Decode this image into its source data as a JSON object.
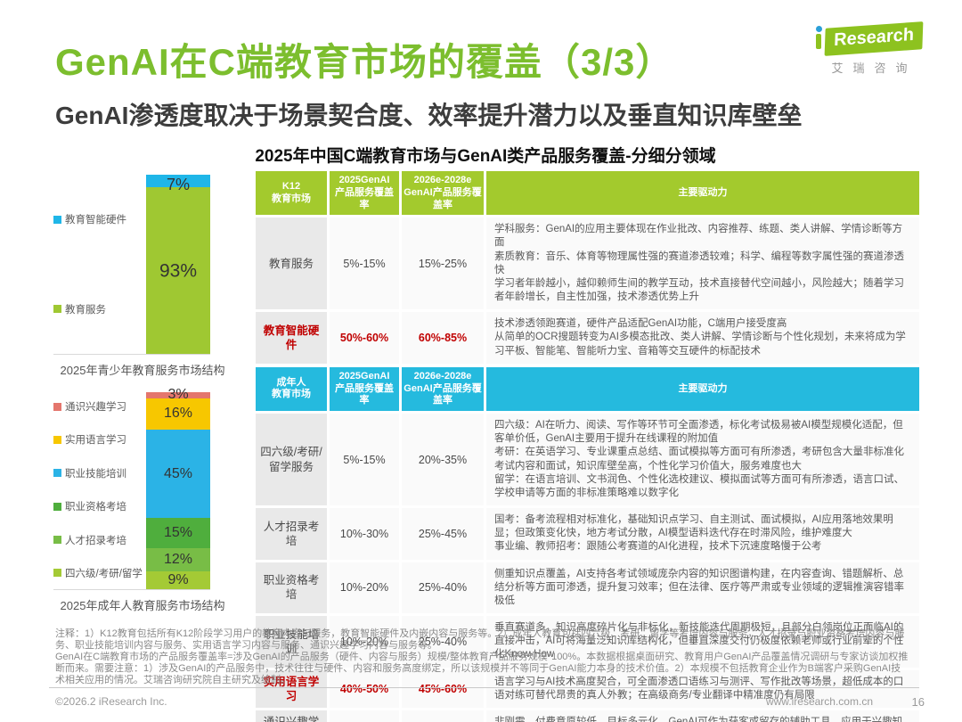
{
  "page": {
    "title": "GenAI在C端教育市场的覆盖（3/3）",
    "subtitle": "GenAI渗透度取决于场景契合度、效率提升潜力以及垂直知识库壁垒",
    "section_title": "2025年中国C端教育市场与GenAI类产品服务覆盖-分细分领域"
  },
  "logo": {
    "brand": "iResearch",
    "brand_text": "Research",
    "brand_cn": "艾瑞咨询"
  },
  "colors": {
    "title_green": "#7cbe2e",
    "table_header_green": "#a3ca2d",
    "table_header_cyan": "#25bade",
    "highlight_red": "#c00000"
  },
  "chart_data": [
    {
      "type": "bar",
      "stacked": true,
      "title": "2025年青少年教育服务市场结构",
      "unit": "%",
      "segments": [
        {
          "label": "教育智能硬件",
          "value": 7,
          "color": "#1fb6e8"
        },
        {
          "label": "教育服务",
          "value": 93,
          "color": "#9fc832"
        }
      ]
    },
    {
      "type": "bar",
      "stacked": true,
      "title": "2025年成年人教育服务市场结构",
      "unit": "%",
      "segments": [
        {
          "label": "通识兴趣学习",
          "value": 3,
          "color": "#e4766d"
        },
        {
          "label": "实用语言学习",
          "value": 16,
          "color": "#f7c700"
        },
        {
          "label": "职业技能培训",
          "value": 45,
          "color": "#2bb3e6"
        },
        {
          "label": "职业资格考培",
          "value": 15,
          "color": "#4fae3d"
        },
        {
          "label": "人才招录考培",
          "value": 12,
          "color": "#78bd46"
        },
        {
          "label": "四六级/考研/留学",
          "value": 9,
          "color": "#a4ca35"
        }
      ]
    }
  ],
  "tables": [
    {
      "theme": "green",
      "header": {
        "col1": "K12\n教育市场",
        "col2": "2025GenAI\n产品服务覆盖率",
        "col3": "2026e-2028e\nGenAI产品服务覆盖率",
        "col4": "主要驱动力"
      },
      "rows": [
        {
          "label": "教育服务",
          "v2025": "5%-15%",
          "v2026": "15%-25%",
          "highlight": false,
          "drivers": [
            "学科服务：GenAI的应用主要体现在作业批改、内容推荐、练题、类人讲解、学情诊断等方面",
            "素质教育：音乐、体育等物理属性强的赛道渗透较难；科学、编程等数字属性强的赛道渗透快",
            "学习者年龄越小，越仰赖师生间的教学互动，技术直接替代空间越小，风险越大；随着学习者年龄增长，自主性加强，技术渗透优势上升"
          ]
        },
        {
          "label": "教育智能硬件",
          "v2025": "50%-60%",
          "v2026": "60%-85%",
          "highlight": true,
          "drivers": [
            "技术渗透领跑赛道，硬件产品适配GenAI功能，C端用户接受度高",
            "从简单的OCR搜题转变为AI多模态批改、类人讲解、学情诊断与个性化规划，未来将成为学习平板、智能笔、智能听力宝、音箱等交互硬件的标配技术"
          ]
        }
      ]
    },
    {
      "theme": "cyan",
      "header": {
        "col1": "成年人\n教育市场",
        "col2": "2025GenAI\n产品服务覆盖率",
        "col3": "2026e-2028e\nGenAI产品服务覆盖率",
        "col4": "主要驱动力"
      },
      "rows": [
        {
          "label": "四六级/考研/留学服务",
          "v2025": "5%-15%",
          "v2026": "20%-35%",
          "highlight": false,
          "drivers": [
            "四六级：AI在听力、阅读、写作等环节可全面渗透，标化考试极易被AI模型规模化适配，但客单价低，GenAI主要用于提升在线课程的附加值",
            "考研：在英语学习、专业课重点总结、面试模拟等方面可有所渗透，考研包含大量非标准化考试内容和面试，知识库壁垒高，个性化学习价值大，服务难度也大",
            "留学：在语言培训、文书润色、个性化选校建议、模拟面试等方面可有所渗透，语言口试、学校申请等方面的非标准策略难以数字化"
          ]
        },
        {
          "label": "人才招录考培",
          "v2025": "10%-30%",
          "v2026": "25%-45%",
          "highlight": false,
          "drivers": [
            "国考：备考流程相对标准化，基础知识点学习、自主测试、面试模拟，AI应用落地效果明显；但政策变化快，地方考试分散，AI模型语料迭代存在时滞风险，维护难度大",
            "事业编、教师招考：跟随公考赛道的AI化进程，技术下沉速度略慢于公考"
          ]
        },
        {
          "label": "职业资格考培",
          "v2025": "10%-20%",
          "v2026": "25%-40%",
          "highlight": false,
          "drivers": [
            "侧重知识点覆盖，AI支持各考试领域庞杂内容的知识图谱构建，在内容查询、错题解析、总结分析等方面可渗透，提升复习效率；但在法律、医疗等严肃或专业领域的逻辑推演容错率极低"
          ]
        },
        {
          "label": "职业技能培训",
          "v2025": "10%-20%",
          "v2026": "25%-40%",
          "highlight": false,
          "drivers": [
            "垂直赛道多，知识高度碎片化与非标化，新技能迭代周期极短，且部分白领岗位正面临AI的直接冲击，AI可将海量泛知识库结构化，但垂直深度交付仍极度依赖老师或行业前辈的个性化Know-How"
          ]
        },
        {
          "label": "实用语言学习",
          "v2025": "40%-50%",
          "v2026": "45%-60%",
          "highlight": true,
          "drivers": [
            "语言学习与AI技术高度契合，可全面渗透口语练习与测评、写作批改等场景，超低成本的口语对练可替代昂贵的真人外教；在高级商务/专业翻译中精准度仍有局限"
          ]
        },
        {
          "label": "通识兴趣学习",
          "v2025": "10%-20%",
          "v2026": "15%-30%",
          "highlight": false,
          "drivers": [
            "非刚需、付费意愿较低、目标多元化，GenAI可作为获客或留存的辅助工具，应用于兴趣知识图谱推荐、知识搜索问答与总结等场景，转化其他服务"
          ]
        }
      ]
    }
  ],
  "footnotes": [
    "注释：1）K12教育包括所有K12阶段学习用户的教育内容与服务，教育智能硬件及内嵌内容与服务等。2）成年人教育包括四六级、考研、留学等考培内容与服务，人才招录与职业资格考培内容与服务、职业技能培训内容与服务、实用语言学习内容与服务、通识兴趣学习内容与服务等。",
    "GenAI在C端教育市场的产品服务覆盖率=涉及GenAI的产品服务（硬件、内容与服务）规模/整体教育产品服务规模*100%。本数据根据桌面研究、教育用户GenAI产品覆盖情况调研与专家访谈加权推断而来。需要注意：1）涉及GenAI的产品服务中，技术往往与硬件、内容和服务高度绑定，所以该规模并不等同于GenAI能力本身的技术价值。2）本规模不包括教育企业作为B端客户采购GenAI技术相关应用的情况。艾瑞咨询研究院自主研究及绘制。"
  ],
  "footer": {
    "left": "©2026.2 iResearch Inc.",
    "right": "www.iresearch.com.cn",
    "page": "16"
  }
}
